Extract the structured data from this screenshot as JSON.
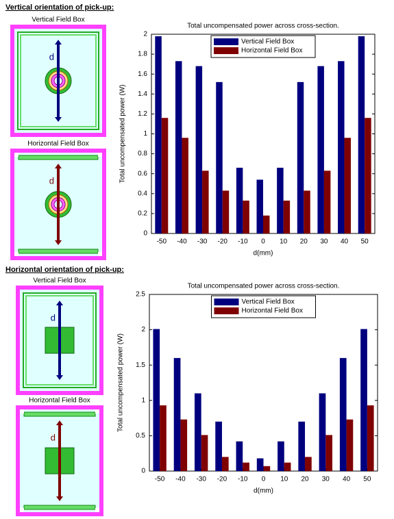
{
  "sections": [
    {
      "heading": "Vertical orientation of pick-up:",
      "diagrams": [
        {
          "title": "Vertical Field Box",
          "label": "d"
        },
        {
          "title": "Horizontal Field Box",
          "label": "d"
        }
      ]
    },
    {
      "heading": "Horizontal orientation of pick-up:",
      "diagrams": [
        {
          "title": "Vertical Field Box",
          "label": "d"
        },
        {
          "title": "Horizontal Field Box",
          "label": "d"
        }
      ]
    }
  ],
  "chart_data": [
    {
      "type": "bar",
      "title": "Total uncompensated power across cross-section.",
      "xlabel": "d(mm)",
      "ylabel": "Total uncompensated power (W)",
      "categories": [
        "-50",
        "-40",
        "-30",
        "-20",
        "-10",
        "0",
        "10",
        "20",
        "30",
        "40",
        "50"
      ],
      "series": [
        {
          "name": "Vertical Field Box",
          "color": "#00007f",
          "values": [
            1.98,
            1.73,
            1.68,
            1.52,
            0.66,
            0.54,
            0.66,
            1.52,
            1.68,
            1.73,
            1.98
          ]
        },
        {
          "name": "Horizontal Field Box",
          "color": "#7f0000",
          "values": [
            1.16,
            0.96,
            0.63,
            0.43,
            0.33,
            0.18,
            0.33,
            0.43,
            0.63,
            0.96,
            1.16
          ]
        }
      ],
      "ylim": [
        0,
        2
      ],
      "yticks": [
        0,
        0.2,
        0.4,
        0.6,
        0.8,
        1,
        1.2,
        1.4,
        1.6,
        1.8,
        2
      ],
      "legend": "upper center",
      "grid": false
    },
    {
      "type": "bar",
      "title": "Total uncompensated power across cross-section.",
      "xlabel": "d(mm)",
      "ylabel": "Total uncompensated power (W)",
      "categories": [
        "-50",
        "-40",
        "-30",
        "-20",
        "-10",
        "0",
        "10",
        "20",
        "30",
        "40",
        "50"
      ],
      "series": [
        {
          "name": "Vertical Field Box",
          "color": "#00007f",
          "values": [
            2.01,
            1.6,
            1.1,
            0.7,
            0.42,
            0.18,
            0.42,
            0.7,
            1.1,
            1.6,
            2.01
          ]
        },
        {
          "name": "Horizontal Field Box",
          "color": "#7f0000",
          "values": [
            0.93,
            0.73,
            0.51,
            0.2,
            0.12,
            0.07,
            0.12,
            0.2,
            0.51,
            0.73,
            0.93
          ]
        }
      ],
      "ylim": [
        0,
        2.5
      ],
      "yticks": [
        0,
        0.5,
        1,
        1.5,
        2,
        2.5
      ],
      "legend": "upper center",
      "grid": false
    }
  ]
}
